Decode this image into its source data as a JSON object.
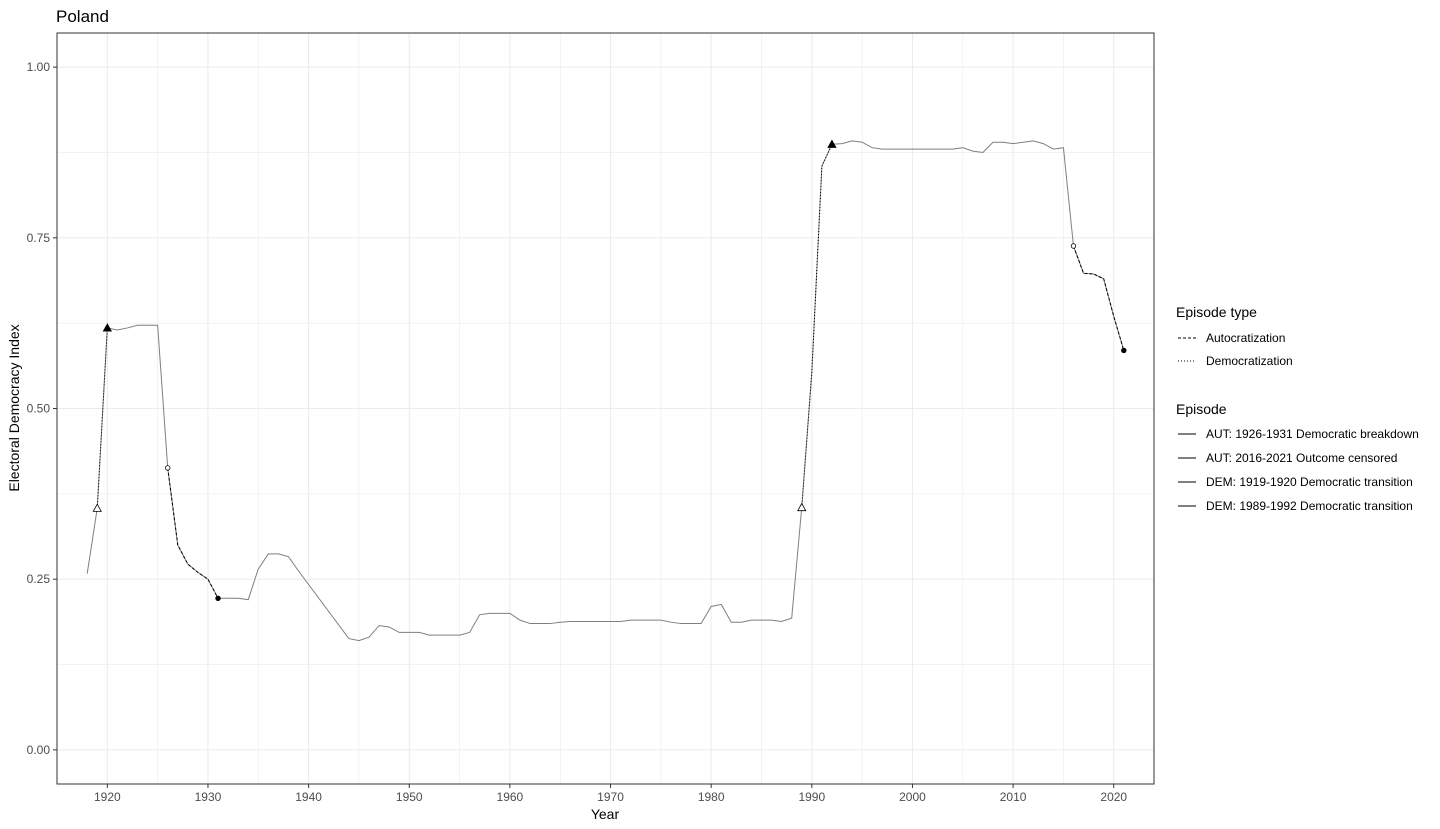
{
  "chart_data": {
    "type": "line",
    "title": "Poland",
    "xlabel": "Year",
    "ylabel": "Electoral Democracy Index",
    "xlim": [
      1915,
      2024
    ],
    "ylim": [
      -0.05,
      1.05
    ],
    "x_ticks": [
      1920,
      1930,
      1940,
      1950,
      1960,
      1970,
      1980,
      1990,
      2000,
      2010,
      2020
    ],
    "x_tick_labels": [
      "1920",
      "1930",
      "1940",
      "1950",
      "1960",
      "1970",
      "1980",
      "1990",
      "2000",
      "2010",
      "2020"
    ],
    "y_ticks": [
      0,
      0.25,
      0.5,
      0.75,
      1
    ],
    "y_tick_labels": [
      "0.00",
      "0.25",
      "0.50",
      "0.75",
      "1.00"
    ],
    "grid": true,
    "legend_position": "right",
    "colors": {
      "series": "#7f7f7f",
      "episode": "#000000",
      "grid": "#ebebeb",
      "border": "#333333"
    },
    "series": [
      {
        "x": [
          1918,
          1919,
          1920,
          1921,
          1922,
          1923,
          1924,
          1925,
          1926,
          1927,
          1928,
          1929,
          1930,
          1931,
          1932,
          1933,
          1934,
          1935,
          1936,
          1937,
          1938,
          1939,
          1944,
          1945,
          1946,
          1947,
          1948,
          1949,
          1950,
          1951,
          1952,
          1953,
          1954,
          1955,
          1956,
          1957,
          1958,
          1959,
          1960,
          1961,
          1962,
          1963,
          1964,
          1965,
          1966,
          1967,
          1968,
          1969,
          1970,
          1971,
          1972,
          1973,
          1974,
          1975,
          1976,
          1977,
          1978,
          1979,
          1980,
          1981,
          1982,
          1983,
          1984,
          1985,
          1986,
          1987,
          1988,
          1989,
          1990,
          1991,
          1992,
          1993,
          1994,
          1995,
          1996,
          1997,
          1998,
          1999,
          2000,
          2001,
          2002,
          2003,
          2004,
          2005,
          2006,
          2007,
          2008,
          2009,
          2010,
          2011,
          2012,
          2013,
          2014,
          2015,
          2016,
          2017,
          2018,
          2019,
          2020,
          2021
        ],
        "y": [
          0.258,
          0.354,
          0.618,
          0.615,
          0.618,
          0.622,
          0.622,
          0.622,
          0.413,
          0.3,
          0.272,
          0.26,
          0.25,
          0.222,
          0.222,
          0.222,
          0.22,
          0.265,
          0.287,
          0.287,
          0.283,
          0.262,
          0.163,
          0.16,
          0.165,
          0.182,
          0.18,
          0.172,
          0.172,
          0.172,
          0.168,
          0.168,
          0.168,
          0.168,
          0.172,
          0.198,
          0.2,
          0.2,
          0.2,
          0.19,
          0.185,
          0.185,
          0.185,
          0.187,
          0.188,
          0.188,
          0.188,
          0.188,
          0.188,
          0.188,
          0.19,
          0.19,
          0.19,
          0.19,
          0.187,
          0.185,
          0.185,
          0.185,
          0.21,
          0.213,
          0.187,
          0.187,
          0.19,
          0.19,
          0.19,
          0.188,
          0.193,
          0.355,
          0.553,
          0.855,
          0.887,
          0.888,
          0.892,
          0.89,
          0.882,
          0.88,
          0.88,
          0.88,
          0.88,
          0.88,
          0.88,
          0.88,
          0.88,
          0.882,
          0.877,
          0.875,
          0.89,
          0.89,
          0.888,
          0.89,
          0.892,
          0.888,
          0.88,
          0.882,
          0.738,
          0.698,
          0.697,
          0.69,
          0.635,
          0.585
        ]
      }
    ],
    "episodes": [
      {
        "label": "AUT: 1926-1931 Democratic breakdown",
        "type": "Autocratization",
        "start": 1926,
        "end": 1931
      },
      {
        "label": "AUT: 2016-2021 Outcome censored",
        "type": "Autocratization",
        "start": 2016,
        "end": 2021
      },
      {
        "label": "DEM: 1919-1920 Democratic transition",
        "type": "Democratization",
        "start": 1919,
        "end": 1920
      },
      {
        "label": "DEM: 1989-1992 Democratic transition",
        "type": "Democratization",
        "start": 1989,
        "end": 1992
      }
    ],
    "legend": {
      "episode_type_title": "Episode type",
      "episode_types": [
        {
          "label": "Autocratization",
          "style": "dashed"
        },
        {
          "label": "Democratization",
          "style": "dotted"
        }
      ],
      "episode_title": "Episode",
      "episodes": [
        "AUT: 1926-1931 Democratic breakdown",
        "AUT: 2016-2021 Outcome censored",
        "DEM: 1919-1920 Democratic transition",
        "DEM: 1989-1992 Democratic transition"
      ]
    }
  }
}
